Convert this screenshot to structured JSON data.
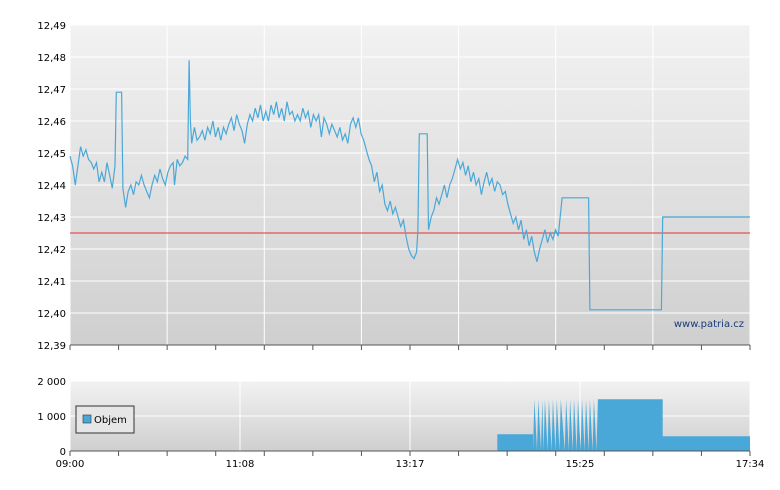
{
  "chart_data": [
    {
      "type": "line",
      "y_ticks": [
        "12,49",
        "12,48",
        "12,47",
        "12,46",
        "12,45",
        "12,44",
        "12,43",
        "12,42",
        "12,41",
        "12,40",
        "12,39"
      ],
      "ylim": [
        12.39,
        12.49
      ],
      "xlim_minutes": [
        0,
        514
      ],
      "grid": true,
      "reference_line": {
        "value": 12.425,
        "color": "#e03030"
      },
      "watermark": "www.patria.cz",
      "series": [
        {
          "color": "#4aa8d8",
          "points": [
            [
              0,
              12.449
            ],
            [
              2,
              12.446
            ],
            [
              4,
              12.44
            ],
            [
              6,
              12.446
            ],
            [
              8,
              12.452
            ],
            [
              10,
              12.449
            ],
            [
              12,
              12.451
            ],
            [
              14,
              12.448
            ],
            [
              16,
              12.447
            ],
            [
              18,
              12.445
            ],
            [
              20,
              12.447
            ],
            [
              22,
              12.441
            ],
            [
              24,
              12.444
            ],
            [
              26,
              12.441
            ],
            [
              28,
              12.447
            ],
            [
              30,
              12.443
            ],
            [
              32,
              12.439
            ],
            [
              34,
              12.446
            ],
            [
              35,
              12.469
            ],
            [
              37,
              12.469
            ],
            [
              39,
              12.469
            ],
            [
              40,
              12.439
            ],
            [
              42,
              12.433
            ],
            [
              44,
              12.438
            ],
            [
              46,
              12.44
            ],
            [
              48,
              12.437
            ],
            [
              50,
              12.441
            ],
            [
              52,
              12.44
            ],
            [
              54,
              12.443
            ],
            [
              56,
              12.44
            ],
            [
              58,
              12.438
            ],
            [
              60,
              12.436
            ],
            [
              62,
              12.44
            ],
            [
              64,
              12.443
            ],
            [
              66,
              12.441
            ],
            [
              68,
              12.445
            ],
            [
              70,
              12.442
            ],
            [
              72,
              12.44
            ],
            [
              74,
              12.444
            ],
            [
              76,
              12.446
            ],
            [
              78,
              12.447
            ],
            [
              79,
              12.44
            ],
            [
              81,
              12.448
            ],
            [
              83,
              12.446
            ],
            [
              85,
              12.447
            ],
            [
              87,
              12.449
            ],
            [
              89,
              12.448
            ],
            [
              90,
              12.479
            ],
            [
              91,
              12.46
            ],
            [
              92,
              12.453
            ],
            [
              94,
              12.458
            ],
            [
              96,
              12.454
            ],
            [
              98,
              12.455
            ],
            [
              100,
              12.457
            ],
            [
              102,
              12.454
            ],
            [
              104,
              12.458
            ],
            [
              106,
              12.456
            ],
            [
              108,
              12.46
            ],
            [
              110,
              12.455
            ],
            [
              112,
              12.458
            ],
            [
              114,
              12.454
            ],
            [
              116,
              12.458
            ],
            [
              118,
              12.456
            ],
            [
              120,
              12.459
            ],
            [
              122,
              12.461
            ],
            [
              124,
              12.457
            ],
            [
              126,
              12.462
            ],
            [
              128,
              12.459
            ],
            [
              130,
              12.457
            ],
            [
              132,
              12.453
            ],
            [
              134,
              12.459
            ],
            [
              136,
              12.462
            ],
            [
              138,
              12.46
            ],
            [
              140,
              12.464
            ],
            [
              142,
              12.461
            ],
            [
              144,
              12.465
            ],
            [
              146,
              12.46
            ],
            [
              148,
              12.463
            ],
            [
              150,
              12.46
            ],
            [
              152,
              12.465
            ],
            [
              154,
              12.462
            ],
            [
              156,
              12.466
            ],
            [
              158,
              12.461
            ],
            [
              160,
              12.464
            ],
            [
              162,
              12.46
            ],
            [
              164,
              12.466
            ],
            [
              166,
              12.462
            ],
            [
              168,
              12.463
            ],
            [
              170,
              12.46
            ],
            [
              172,
              12.462
            ],
            [
              174,
              12.46
            ],
            [
              176,
              12.464
            ],
            [
              178,
              12.461
            ],
            [
              180,
              12.463
            ],
            [
              182,
              12.458
            ],
            [
              184,
              12.462
            ],
            [
              186,
              12.46
            ],
            [
              188,
              12.462
            ],
            [
              190,
              12.455
            ],
            [
              192,
              12.461
            ],
            [
              194,
              12.459
            ],
            [
              196,
              12.456
            ],
            [
              198,
              12.459
            ],
            [
              200,
              12.457
            ],
            [
              202,
              12.455
            ],
            [
              204,
              12.458
            ],
            [
              206,
              12.454
            ],
            [
              208,
              12.456
            ],
            [
              210,
              12.453
            ],
            [
              212,
              12.459
            ],
            [
              214,
              12.461
            ],
            [
              216,
              12.458
            ],
            [
              218,
              12.461
            ],
            [
              220,
              12.456
            ],
            [
              222,
              12.454
            ],
            [
              224,
              12.451
            ],
            [
              226,
              12.448
            ],
            [
              228,
              12.446
            ],
            [
              230,
              12.441
            ],
            [
              232,
              12.444
            ],
            [
              234,
              12.438
            ],
            [
              236,
              12.44
            ],
            [
              238,
              12.434
            ],
            [
              240,
              12.432
            ],
            [
              242,
              12.435
            ],
            [
              244,
              12.431
            ],
            [
              246,
              12.433
            ],
            [
              248,
              12.43
            ],
            [
              250,
              12.427
            ],
            [
              252,
              12.429
            ],
            [
              254,
              12.424
            ],
            [
              256,
              12.42
            ],
            [
              258,
              12.418
            ],
            [
              260,
              12.417
            ],
            [
              262,
              12.419
            ],
            [
              263,
              12.426
            ],
            [
              264,
              12.456
            ],
            [
              267,
              12.456
            ],
            [
              270,
              12.456
            ],
            [
              271,
              12.426
            ],
            [
              273,
              12.43
            ],
            [
              275,
              12.432
            ],
            [
              277,
              12.436
            ],
            [
              279,
              12.434
            ],
            [
              281,
              12.437
            ],
            [
              283,
              12.44
            ],
            [
              285,
              12.436
            ],
            [
              287,
              12.44
            ],
            [
              289,
              12.442
            ],
            [
              291,
              12.445
            ],
            [
              293,
              12.448
            ],
            [
              295,
              12.445
            ],
            [
              297,
              12.447
            ],
            [
              299,
              12.443
            ],
            [
              301,
              12.446
            ],
            [
              303,
              12.441
            ],
            [
              305,
              12.444
            ],
            [
              307,
              12.44
            ],
            [
              309,
              12.442
            ],
            [
              311,
              12.437
            ],
            [
              313,
              12.441
            ],
            [
              315,
              12.444
            ],
            [
              317,
              12.44
            ],
            [
              319,
              12.442
            ],
            [
              321,
              12.438
            ],
            [
              323,
              12.441
            ],
            [
              325,
              12.44
            ],
            [
              327,
              12.437
            ],
            [
              329,
              12.438
            ],
            [
              331,
              12.434
            ],
            [
              333,
              12.431
            ],
            [
              335,
              12.428
            ],
            [
              337,
              12.43
            ],
            [
              339,
              12.426
            ],
            [
              341,
              12.429
            ],
            [
              343,
              12.423
            ],
            [
              345,
              12.426
            ],
            [
              347,
              12.421
            ],
            [
              349,
              12.424
            ],
            [
              351,
              12.419
            ],
            [
              353,
              12.416
            ],
            [
              355,
              12.42
            ],
            [
              357,
              12.423
            ],
            [
              359,
              12.426
            ],
            [
              361,
              12.422
            ],
            [
              363,
              12.425
            ],
            [
              365,
              12.423
            ],
            [
              367,
              12.426
            ],
            [
              369,
              12.424
            ],
            [
              370,
              12.428
            ],
            [
              372,
              12.436
            ],
            [
              380,
              12.436
            ],
            [
              388,
              12.436
            ],
            [
              392,
              12.436
            ],
            [
              393,
              12.401
            ],
            [
              420,
              12.401
            ],
            [
              447,
              12.401
            ],
            [
              448,
              12.43
            ],
            [
              480,
              12.43
            ],
            [
              514,
              12.43
            ]
          ]
        }
      ]
    },
    {
      "type": "area",
      "y_ticks": [
        "2 000",
        "1 000",
        "0"
      ],
      "ylim": [
        0,
        2000
      ],
      "x_ticks": [
        "09:00",
        "11:08",
        "13:17",
        "15:25",
        "17:34"
      ],
      "legend": {
        "label": "Objem",
        "position": "left"
      },
      "grid": true,
      "series": [
        {
          "name": "Objem",
          "color": "#4aa8d8",
          "steps": [
            [
              0,
              0
            ],
            [
              323,
              0
            ],
            [
              323,
              480
            ],
            [
              350,
              480
            ],
            [
              350,
              0
            ],
            [
              351,
              1480
            ],
            [
              353,
              0
            ],
            [
              354,
              1480
            ],
            [
              356,
              0
            ],
            [
              357,
              1480
            ],
            [
              358,
              0
            ],
            [
              359,
              1480
            ],
            [
              361,
              0
            ],
            [
              362,
              1480
            ],
            [
              364,
              0
            ],
            [
              365,
              1480
            ],
            [
              367,
              0
            ],
            [
              368,
              1480
            ],
            [
              370,
              0
            ],
            [
              371,
              1480
            ],
            [
              374,
              0
            ],
            [
              375,
              1480
            ],
            [
              377,
              0
            ],
            [
              378,
              1480
            ],
            [
              380,
              0
            ],
            [
              381,
              1480
            ],
            [
              383,
              0
            ],
            [
              384,
              1480
            ],
            [
              386,
              0
            ],
            [
              387,
              1480
            ],
            [
              389,
              0
            ],
            [
              390,
              1480
            ],
            [
              392,
              0
            ],
            [
              393,
              1480
            ],
            [
              395,
              0
            ],
            [
              396,
              1480
            ],
            [
              398,
              0
            ],
            [
              399,
              1480
            ],
            [
              448,
              1480
            ],
            [
              448,
              420
            ],
            [
              514,
              420
            ],
            [
              514,
              0
            ]
          ]
        }
      ]
    }
  ]
}
